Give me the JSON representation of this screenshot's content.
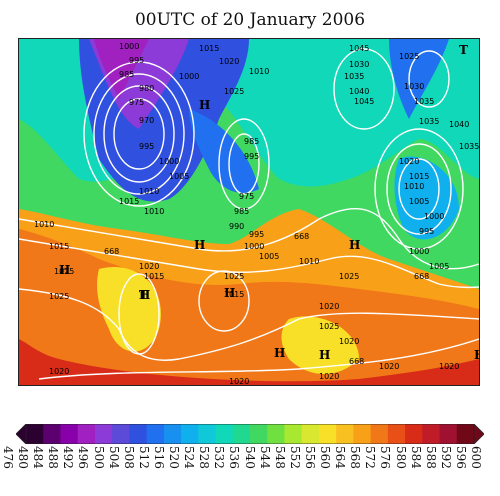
{
  "title": "00UTC of 20 January 2006",
  "palette": [
    "#2c0030",
    "#5c0070",
    "#8800aa",
    "#a020c0",
    "#8c3ad8",
    "#5c4ad8",
    "#3050e0",
    "#2070f0",
    "#1890f0",
    "#10b0ee",
    "#10c8d8",
    "#10d8b8",
    "#20d890",
    "#40d860",
    "#70e040",
    "#a8e830",
    "#d8e830",
    "#f8e028",
    "#f8c020",
    "#f8a018",
    "#f07818",
    "#e85018",
    "#d82c18",
    "#c01c28",
    "#a01030",
    "#700818"
  ],
  "colorbar": {
    "ticks": [
      "476",
      "480",
      "484",
      "488",
      "492",
      "496",
      "500",
      "504",
      "508",
      "512",
      "516",
      "520",
      "524",
      "528",
      "532",
      "536",
      "540",
      "544",
      "548",
      "552",
      "556",
      "560",
      "564",
      "568",
      "572",
      "576",
      "580",
      "584",
      "588",
      "592",
      "596",
      "600"
    ]
  },
  "isobars": [
    {
      "value": "1000",
      "label": "1000"
    },
    {
      "value": "995",
      "label": "995"
    },
    {
      "value": "985",
      "label": "985"
    },
    {
      "value": "980",
      "label": "980"
    },
    {
      "value": "975",
      "label": "975"
    },
    {
      "value": "970",
      "label": "970"
    },
    {
      "value": "990",
      "label": "990"
    },
    {
      "value": "1005",
      "label": "1005"
    },
    {
      "value": "1010",
      "label": "1010"
    },
    {
      "value": "1015",
      "label": "1015"
    },
    {
      "value": "1020",
      "label": "1020"
    },
    {
      "value": "1025",
      "label": "1025"
    },
    {
      "value": "1030",
      "label": "1030"
    },
    {
      "value": "1035",
      "label": "1035"
    },
    {
      "value": "1040",
      "label": "1040"
    },
    {
      "value": "1045",
      "label": "1045"
    },
    {
      "value": "668",
      "label": "668"
    }
  ],
  "centers": [
    "H",
    "H",
    "H",
    "H",
    "H",
    "H",
    "T",
    "T",
    "H",
    "H",
    "H"
  ]
}
